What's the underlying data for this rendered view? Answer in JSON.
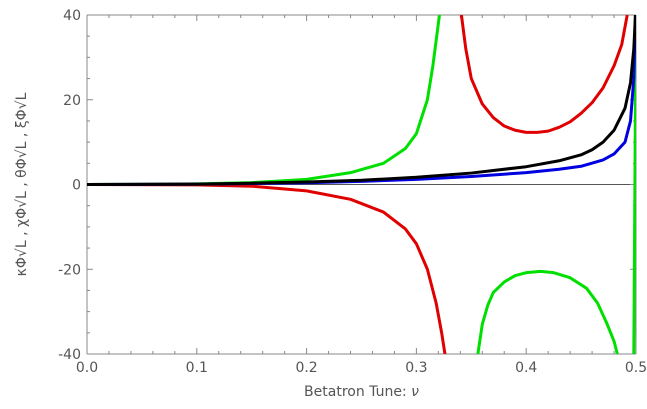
{
  "chart_data": {
    "type": "line",
    "xlabel_prefix": "Betatron Tune: ",
    "xlabel_symbol": "ν",
    "ylabel": "κΦ√L , χΦ√L , θΦ√L , ξΦ√L",
    "xlim": [
      0,
      0.5
    ],
    "ylim": [
      -40,
      40
    ],
    "x_ticks": [
      {
        "value": 0.0,
        "label": "0.0"
      },
      {
        "value": 0.1,
        "label": "0.1"
      },
      {
        "value": 0.2,
        "label": "0.2"
      },
      {
        "value": 0.3,
        "label": "0.3"
      },
      {
        "value": 0.4,
        "label": "0.4"
      },
      {
        "value": 0.5,
        "label": "0.5"
      }
    ],
    "y_ticks": [
      {
        "value": -40,
        "label": "-40"
      },
      {
        "value": -20,
        "label": "-20"
      },
      {
        "value": 0,
        "label": "0"
      },
      {
        "value": 20,
        "label": "20"
      },
      {
        "value": 40,
        "label": "40"
      }
    ],
    "grid": false,
    "series": [
      {
        "color": "#00e000",
        "segments": [
          [
            [
              0.0,
              0.0
            ],
            [
              0.05,
              0.03
            ],
            [
              0.1,
              0.15
            ],
            [
              0.15,
              0.45
            ],
            [
              0.2,
              1.2
            ],
            [
              0.24,
              2.8
            ],
            [
              0.27,
              5.0
            ],
            [
              0.29,
              8.5
            ],
            [
              0.3,
              12.0
            ],
            [
              0.31,
              20.0
            ],
            [
              0.315,
              28.0
            ],
            [
              0.318,
              34.0
            ],
            [
              0.321,
              40.0
            ]
          ],
          [
            [
              0.356,
              -40.0
            ],
            [
              0.36,
              -33.0
            ],
            [
              0.365,
              -28.5
            ],
            [
              0.37,
              -25.5
            ],
            [
              0.38,
              -23.0
            ],
            [
              0.39,
              -21.5
            ],
            [
              0.4,
              -20.8
            ],
            [
              0.413,
              -20.5
            ],
            [
              0.425,
              -20.8
            ],
            [
              0.44,
              -22.0
            ],
            [
              0.455,
              -24.5
            ],
            [
              0.465,
              -28.0
            ],
            [
              0.473,
              -32.5
            ],
            [
              0.48,
              -37.0
            ],
            [
              0.483,
              -40.0
            ]
          ],
          [
            [
              0.498,
              -40.0
            ],
            [
              0.499,
              0.0
            ],
            [
              0.5,
              40.0
            ]
          ]
        ]
      },
      {
        "color": "#e00000",
        "segments": [
          [
            [
              0.0,
              0.0
            ],
            [
              0.1,
              -0.1
            ],
            [
              0.15,
              -0.4
            ],
            [
              0.2,
              -1.5
            ],
            [
              0.24,
              -3.5
            ],
            [
              0.27,
              -6.5
            ],
            [
              0.29,
              -10.5
            ],
            [
              0.3,
              -14.0
            ],
            [
              0.31,
              -20.0
            ],
            [
              0.318,
              -28.0
            ],
            [
              0.323,
              -35.0
            ],
            [
              0.326,
              -40.0
            ]
          ],
          [
            [
              0.341,
              40.0
            ],
            [
              0.345,
              32.0
            ],
            [
              0.35,
              25.0
            ],
            [
              0.36,
              19.0
            ],
            [
              0.37,
              15.8
            ],
            [
              0.38,
              13.8
            ],
            [
              0.39,
              12.8
            ],
            [
              0.4,
              12.3
            ],
            [
              0.41,
              12.3
            ],
            [
              0.42,
              12.6
            ],
            [
              0.43,
              13.5
            ],
            [
              0.44,
              14.8
            ],
            [
              0.45,
              16.8
            ],
            [
              0.46,
              19.3
            ],
            [
              0.47,
              22.8
            ],
            [
              0.48,
              28.0
            ],
            [
              0.487,
              33.0
            ],
            [
              0.492,
              40.0
            ]
          ]
        ]
      },
      {
        "color": "#0000e0",
        "segments": [
          [
            [
              0.0,
              0.0
            ],
            [
              0.1,
              0.08
            ],
            [
              0.2,
              0.4
            ],
            [
              0.25,
              0.75
            ],
            [
              0.3,
              1.2
            ],
            [
              0.35,
              1.9
            ],
            [
              0.4,
              2.8
            ],
            [
              0.43,
              3.6
            ],
            [
              0.45,
              4.3
            ],
            [
              0.47,
              5.8
            ],
            [
              0.48,
              7.2
            ],
            [
              0.49,
              10.0
            ],
            [
              0.495,
              15.0
            ],
            [
              0.498,
              25.0
            ],
            [
              0.4995,
              40.0
            ]
          ]
        ]
      },
      {
        "color": "#000000",
        "segments": [
          [
            [
              0.0,
              0.0
            ],
            [
              0.1,
              0.1
            ],
            [
              0.15,
              0.3
            ],
            [
              0.2,
              0.6
            ],
            [
              0.25,
              1.0
            ],
            [
              0.3,
              1.7
            ],
            [
              0.35,
              2.7
            ],
            [
              0.4,
              4.2
            ],
            [
              0.43,
              5.6
            ],
            [
              0.45,
              7.0
            ],
            [
              0.46,
              8.2
            ],
            [
              0.47,
              10.0
            ],
            [
              0.48,
              12.8
            ],
            [
              0.49,
              18.0
            ],
            [
              0.495,
              24.0
            ],
            [
              0.498,
              32.0
            ],
            [
              0.4995,
              40.0
            ]
          ]
        ]
      }
    ]
  }
}
